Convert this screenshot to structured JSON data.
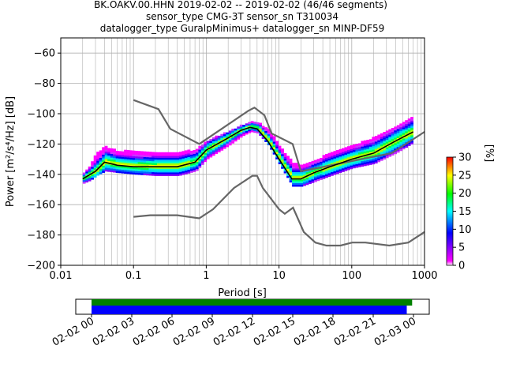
{
  "chart_data": {
    "type": "heatmap",
    "title_lines": [
      "BK.OAKV.00.HHN   2019-02-02 -- 2019-02-02  (46/46 segments)",
      "sensor_type CMG-3T sensor_sn T310034",
      "datalogger_type GuralpMinimus+ datalogger_sn MINP-DF59"
    ],
    "xlabel": "Period [s]",
    "ylabel": "Power [m²/s⁴/Hz] [dB]",
    "xscale": "log",
    "xlim": [
      0.01,
      1000
    ],
    "ylim": [
      -200,
      -50
    ],
    "x_tick_labels": [
      "0.01",
      "0.1",
      "1",
      "10",
      "100",
      "1000"
    ],
    "y_tick_labels": [
      "-200",
      "-180",
      "-160",
      "-140",
      "-120",
      "-100",
      "-80",
      "-60"
    ],
    "grid": true,
    "colorbar": {
      "label": "[%]",
      "range": [
        0,
        30
      ],
      "tick_labels": [
        "0",
        "5",
        "10",
        "15",
        "20",
        "25",
        "30"
      ],
      "colors": [
        "#ffffff",
        "#ff00ff",
        "#0000ff",
        "#00ffff",
        "#00ff00",
        "#ffff00",
        "#ff0000"
      ]
    },
    "noise_models": [
      {
        "name": "NHNM",
        "color": "#666666",
        "points": [
          [
            0.1,
            -91
          ],
          [
            0.22,
            -97
          ],
          [
            0.32,
            -110
          ],
          [
            0.8,
            -120
          ],
          [
            3.8,
            -98
          ],
          [
            4.6,
            -96
          ],
          [
            6.3,
            -101
          ],
          [
            7.9,
            -113
          ],
          [
            15.4,
            -120
          ],
          [
            20,
            -138
          ],
          [
            354,
            -126
          ],
          [
            1000,
            -112
          ]
        ]
      },
      {
        "name": "NLNM",
        "color": "#666666",
        "points": [
          [
            0.1,
            -168
          ],
          [
            0.17,
            -167
          ],
          [
            0.4,
            -167
          ],
          [
            0.8,
            -169
          ],
          [
            1.24,
            -163
          ],
          [
            2.4,
            -149
          ],
          [
            4.3,
            -141
          ],
          [
            5,
            -141
          ],
          [
            6,
            -149
          ],
          [
            10,
            -163
          ],
          [
            12,
            -166
          ],
          [
            15.6,
            -162
          ],
          [
            21.9,
            -178
          ],
          [
            31.6,
            -185
          ],
          [
            45,
            -187
          ],
          [
            70,
            -187
          ],
          [
            101,
            -185
          ],
          [
            154,
            -185
          ],
          [
            328,
            -187
          ],
          [
            600,
            -185
          ],
          [
            1000,
            -178
          ]
        ]
      }
    ],
    "mode_curve": {
      "name": "mode",
      "color": "#000000",
      "points": [
        [
          0.02,
          -143
        ],
        [
          0.03,
          -138
        ],
        [
          0.04,
          -132
        ],
        [
          0.06,
          -134
        ],
        [
          0.1,
          -135
        ],
        [
          0.2,
          -135
        ],
        [
          0.4,
          -135
        ],
        [
          0.7,
          -132
        ],
        [
          1,
          -124
        ],
        [
          2,
          -116
        ],
        [
          3,
          -111
        ],
        [
          4,
          -109
        ],
        [
          5,
          -110
        ],
        [
          7,
          -118
        ],
        [
          10,
          -130
        ],
        [
          15,
          -143
        ],
        [
          20,
          -143
        ],
        [
          30,
          -139
        ],
        [
          50,
          -135
        ],
        [
          100,
          -130
        ],
        [
          200,
          -126
        ],
        [
          400,
          -118
        ],
        [
          700,
          -112
        ]
      ]
    },
    "psd_band": [
      [
        0.02,
        -146,
        -139
      ],
      [
        0.025,
        -144,
        -134
      ],
      [
        0.03,
        -141,
        -126
      ],
      [
        0.04,
        -138,
        -122
      ],
      [
        0.06,
        -139,
        -125
      ],
      [
        0.1,
        -140,
        -125
      ],
      [
        0.2,
        -141,
        -126
      ],
      [
        0.4,
        -141,
        -126
      ],
      [
        0.7,
        -138,
        -124
      ],
      [
        1,
        -130,
        -118
      ],
      [
        2,
        -121,
        -112
      ],
      [
        3,
        -115,
        -108
      ],
      [
        4,
        -112,
        -106
      ],
      [
        5,
        -113,
        -106
      ],
      [
        7,
        -121,
        -111
      ],
      [
        10,
        -134,
        -122
      ],
      [
        15,
        -148,
        -133
      ],
      [
        20,
        -148,
        -134
      ],
      [
        30,
        -145,
        -131
      ],
      [
        50,
        -141,
        -126
      ],
      [
        100,
        -136,
        -121
      ],
      [
        200,
        -133,
        -116
      ],
      [
        400,
        -126,
        -108
      ],
      [
        700,
        -119,
        -101
      ]
    ],
    "time_axis": {
      "tick_labels": [
        "02-02 00",
        "02-02 03",
        "02-02 06",
        "02-02 09",
        "02-02 12",
        "02-02 15",
        "02-02 18",
        "02-02 21",
        "02-03 00"
      ],
      "range_hours": [
        0,
        24
      ],
      "data_available": {
        "color": "#008000",
        "start_hour": 0,
        "end_hour": 23.9
      },
      "psd_used": {
        "color": "#0000ff",
        "start_hour": 0,
        "end_hour": 23.5
      }
    }
  }
}
